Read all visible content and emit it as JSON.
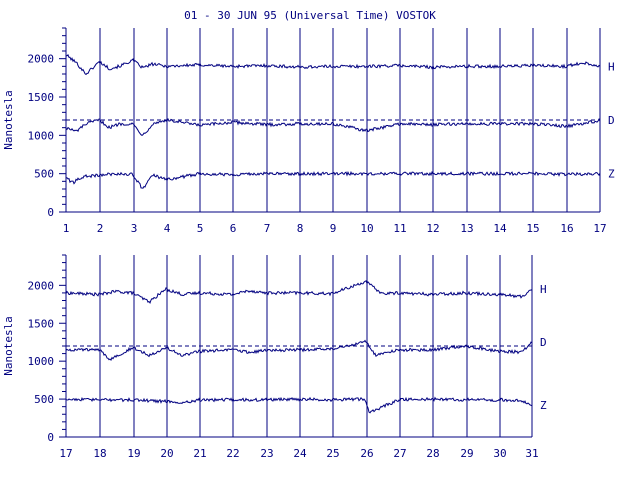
{
  "title": "01 - 30 JUN 95 (Universal Time) VOSTOK",
  "colors": {
    "ink": "#000080",
    "background": "#ffffff"
  },
  "chart_data": [
    {
      "type": "line",
      "ylabel": "Nanotesla",
      "xlabel": "",
      "xlim": [
        1,
        17
      ],
      "ylim": [
        0,
        2400
      ],
      "x_ticks": [
        "1",
        "2",
        "3",
        "4",
        "5",
        "6",
        "7",
        "8",
        "9",
        "10",
        "11",
        "12",
        "13",
        "14",
        "15",
        "16",
        "17"
      ],
      "y_ticks": [
        "0",
        "500",
        "1000",
        "1500",
        "2000"
      ],
      "y_tick_values": [
        0,
        500,
        1000,
        1500,
        2000
      ],
      "dashed_reference_y": [
        1200
      ],
      "series": [
        {
          "name": "H",
          "x": [
            1,
            1.3,
            1.6,
            2,
            2.3,
            2.6,
            3,
            3.3,
            3.6,
            4,
            5,
            6,
            7,
            8,
            9,
            10,
            11,
            12,
            13,
            14,
            15,
            16,
            16.5,
            17
          ],
          "y": [
            2050,
            1950,
            1800,
            1960,
            1870,
            1900,
            1980,
            1880,
            1930,
            1900,
            1920,
            1900,
            1910,
            1890,
            1900,
            1900,
            1910,
            1890,
            1900,
            1900,
            1910,
            1900,
            1950,
            1900
          ]
        },
        {
          "name": "D",
          "x": [
            1,
            1.3,
            1.6,
            2,
            2.3,
            2.6,
            3,
            3.3,
            3.6,
            4,
            5,
            6,
            7,
            8,
            9,
            10,
            11,
            12,
            13,
            14,
            15,
            16,
            16.5,
            17
          ],
          "y": [
            1100,
            1050,
            1150,
            1200,
            1100,
            1150,
            1150,
            1000,
            1150,
            1200,
            1130,
            1170,
            1140,
            1150,
            1150,
            1060,
            1150,
            1140,
            1150,
            1150,
            1150,
            1120,
            1150,
            1200
          ]
        },
        {
          "name": "Z",
          "x": [
            1,
            1.2,
            1.5,
            2,
            2.5,
            3,
            3.3,
            3.6,
            4,
            5,
            6,
            7,
            8,
            9,
            10,
            11,
            12,
            13,
            14,
            15,
            16,
            17
          ],
          "y": [
            450,
            380,
            460,
            480,
            500,
            490,
            300,
            480,
            420,
            500,
            490,
            500,
            500,
            500,
            500,
            500,
            500,
            500,
            500,
            500,
            490,
            500
          ]
        }
      ]
    },
    {
      "type": "line",
      "ylabel": "Nanotesla",
      "xlabel": "",
      "xlim": [
        17,
        31
      ],
      "ylim": [
        0,
        2400
      ],
      "x_ticks": [
        "17",
        "18",
        "19",
        "20",
        "21",
        "22",
        "23",
        "24",
        "25",
        "26",
        "27",
        "28",
        "29",
        "30",
        "31"
      ],
      "y_ticks": [
        "0",
        "500",
        "1000",
        "1500",
        "2000"
      ],
      "y_tick_values": [
        0,
        500,
        1000,
        1500,
        2000
      ],
      "dashed_reference_y": [
        1200
      ],
      "series": [
        {
          "name": "H",
          "x": [
            17,
            18,
            18.5,
            19,
            19.5,
            20,
            20.5,
            21,
            22,
            22.5,
            23,
            24,
            25,
            26,
            26.5,
            27,
            28,
            29,
            30,
            30.7,
            31
          ],
          "y": [
            1900,
            1880,
            1920,
            1900,
            1780,
            1950,
            1880,
            1900,
            1880,
            1930,
            1900,
            1900,
            1890,
            2050,
            1890,
            1900,
            1880,
            1900,
            1880,
            1850,
            1950
          ]
        },
        {
          "name": "D",
          "x": [
            17,
            18,
            18.3,
            19,
            19.5,
            20,
            20.5,
            21,
            22,
            22.5,
            23,
            24,
            25,
            26,
            26.3,
            27,
            28,
            29,
            30,
            30.7,
            31
          ],
          "y": [
            1150,
            1150,
            1020,
            1180,
            1080,
            1180,
            1070,
            1130,
            1150,
            1120,
            1140,
            1150,
            1160,
            1260,
            1080,
            1150,
            1150,
            1200,
            1130,
            1120,
            1250
          ]
        },
        {
          "name": "Z",
          "x": [
            17,
            18,
            19,
            20,
            20.5,
            21,
            22,
            23,
            24,
            25,
            26,
            26.1,
            27,
            28,
            29,
            30,
            30.7,
            31
          ],
          "y": [
            500,
            490,
            490,
            470,
            450,
            490,
            490,
            490,
            500,
            490,
            500,
            320,
            490,
            500,
            490,
            490,
            480,
            420
          ]
        }
      ]
    }
  ]
}
